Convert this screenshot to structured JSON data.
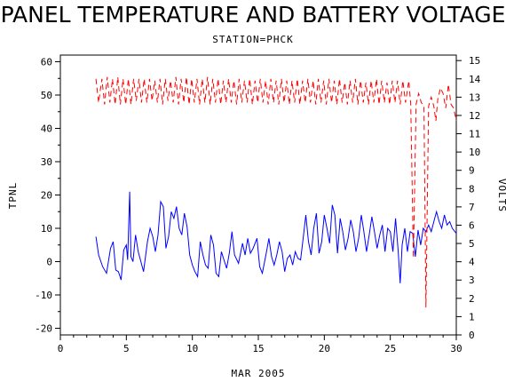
{
  "chart_data": {
    "type": "line",
    "title": "PANEL TEMPERATURE AND BATTERY VOLTAGE",
    "subtitle": "STATION=PHCK",
    "xlabel": "MAR 2005",
    "ylabel_left": "TPNL",
    "ylabel_right": "VOLTS",
    "xlim": [
      0,
      30
    ],
    "ylim_left": [
      -22,
      62
    ],
    "ylim_right": [
      0,
      15.3
    ],
    "x_ticks": [
      0,
      5,
      10,
      15,
      20,
      25,
      30
    ],
    "y_left_ticks": [
      -20,
      -10,
      0,
      10,
      20,
      30,
      40,
      50,
      60
    ],
    "y_right_ticks": [
      0,
      1,
      2,
      3,
      4,
      5,
      6,
      7,
      8,
      9,
      10,
      11,
      12,
      13,
      14,
      15
    ],
    "grid": false,
    "series": [
      {
        "axis": "left",
        "color": "#0000ff",
        "style": "solid",
        "points": [
          [
            2.7,
            7.5
          ],
          [
            2.9,
            2.0
          ],
          [
            3.2,
            -1.5
          ],
          [
            3.5,
            -3.5
          ],
          [
            3.8,
            4.0
          ],
          [
            4.0,
            6.0
          ],
          [
            4.2,
            -2.5
          ],
          [
            4.4,
            -3.0
          ],
          [
            4.6,
            -5.5
          ],
          [
            4.8,
            3.5
          ],
          [
            5.0,
            5.0
          ],
          [
            5.1,
            0.5
          ],
          [
            5.25,
            21.0
          ],
          [
            5.35,
            1.5
          ],
          [
            5.5,
            0.0
          ],
          [
            5.7,
            8.0
          ],
          [
            5.9,
            3.0
          ],
          [
            6.1,
            0.0
          ],
          [
            6.3,
            -3.0
          ],
          [
            6.6,
            6.0
          ],
          [
            6.8,
            10.0
          ],
          [
            7.0,
            7.5
          ],
          [
            7.2,
            3.0
          ],
          [
            7.4,
            8.0
          ],
          [
            7.6,
            18.0
          ],
          [
            7.8,
            16.5
          ],
          [
            8.0,
            4.0
          ],
          [
            8.2,
            7.5
          ],
          [
            8.4,
            15.0
          ],
          [
            8.6,
            13.0
          ],
          [
            8.8,
            16.5
          ],
          [
            9.0,
            10.0
          ],
          [
            9.2,
            8.0
          ],
          [
            9.4,
            14.5
          ],
          [
            9.6,
            10.5
          ],
          [
            9.8,
            2.0
          ],
          [
            10.0,
            -1.0
          ],
          [
            10.2,
            -3.0
          ],
          [
            10.4,
            -4.5
          ],
          [
            10.6,
            6.0
          ],
          [
            10.8,
            2.0
          ],
          [
            11.0,
            -1.0
          ],
          [
            11.2,
            -2.0
          ],
          [
            11.4,
            8.0
          ],
          [
            11.6,
            5.0
          ],
          [
            11.8,
            -3.5
          ],
          [
            12.0,
            -4.5
          ],
          [
            12.2,
            3.0
          ],
          [
            12.4,
            0.5
          ],
          [
            12.6,
            -2.0
          ],
          [
            12.8,
            2.5
          ],
          [
            13.0,
            9.0
          ],
          [
            13.2,
            2.0
          ],
          [
            13.5,
            -0.5
          ],
          [
            13.8,
            5.5
          ],
          [
            14.0,
            2.0
          ],
          [
            14.2,
            7.0
          ],
          [
            14.4,
            2.5
          ],
          [
            14.6,
            4.0
          ],
          [
            14.9,
            7.0
          ],
          [
            15.1,
            -1.5
          ],
          [
            15.3,
            -3.5
          ],
          [
            15.6,
            2.5
          ],
          [
            15.8,
            7.0
          ],
          [
            16.0,
            1.5
          ],
          [
            16.2,
            -1.0
          ],
          [
            16.4,
            2.0
          ],
          [
            16.6,
            6.0
          ],
          [
            16.8,
            3.0
          ],
          [
            17.0,
            -3.0
          ],
          [
            17.2,
            1.0
          ],
          [
            17.4,
            2.0
          ],
          [
            17.6,
            -1.0
          ],
          [
            17.8,
            3.0
          ],
          [
            18.0,
            1.0
          ],
          [
            18.2,
            0.5
          ],
          [
            18.4,
            7.0
          ],
          [
            18.6,
            14.0
          ],
          [
            18.8,
            6.0
          ],
          [
            19.0,
            2.0
          ],
          [
            19.2,
            10.0
          ],
          [
            19.4,
            14.5
          ],
          [
            19.6,
            2.5
          ],
          [
            19.8,
            6.0
          ],
          [
            20.0,
            14.0
          ],
          [
            20.2,
            10.0
          ],
          [
            20.4,
            5.5
          ],
          [
            20.6,
            17.0
          ],
          [
            20.8,
            14.0
          ],
          [
            21.0,
            2.5
          ],
          [
            21.2,
            13.0
          ],
          [
            21.4,
            9.0
          ],
          [
            21.6,
            3.5
          ],
          [
            21.8,
            7.0
          ],
          [
            22.0,
            12.5
          ],
          [
            22.2,
            9.0
          ],
          [
            22.4,
            3.0
          ],
          [
            22.6,
            7.0
          ],
          [
            22.8,
            14.0
          ],
          [
            23.0,
            9.0
          ],
          [
            23.2,
            3.0
          ],
          [
            23.4,
            8.0
          ],
          [
            23.6,
            13.5
          ],
          [
            23.8,
            9.0
          ],
          [
            24.0,
            4.0
          ],
          [
            24.2,
            8.0
          ],
          [
            24.4,
            11.0
          ],
          [
            24.6,
            3.0
          ],
          [
            24.8,
            10.0
          ],
          [
            25.0,
            9.0
          ],
          [
            25.2,
            3.0
          ],
          [
            25.4,
            13.0
          ],
          [
            25.6,
            3.0
          ],
          [
            25.75,
            -6.5
          ],
          [
            25.9,
            5.0
          ],
          [
            26.1,
            10.0
          ],
          [
            26.3,
            3.0
          ],
          [
            26.5,
            9.0
          ],
          [
            26.7,
            8.5
          ],
          [
            26.9,
            1.5
          ],
          [
            27.1,
            9.5
          ],
          [
            27.3,
            5.0
          ],
          [
            27.5,
            10.0
          ],
          [
            27.7,
            9.0
          ],
          [
            27.9,
            11.0
          ],
          [
            28.1,
            9.0
          ],
          [
            28.3,
            12.0
          ],
          [
            28.5,
            15.0
          ],
          [
            28.7,
            12.0
          ],
          [
            28.9,
            10.0
          ],
          [
            29.1,
            14.0
          ],
          [
            29.3,
            11.0
          ],
          [
            29.5,
            12.0
          ],
          [
            29.7,
            10.0
          ],
          [
            29.9,
            9.0
          ],
          [
            30.0,
            8.5
          ]
        ]
      },
      {
        "axis": "right",
        "color": "#ff0000",
        "style": "dashed",
        "points": [
          [
            2.7,
            14.0
          ],
          [
            2.9,
            12.7
          ],
          [
            3.15,
            14.0
          ],
          [
            3.35,
            12.6
          ],
          [
            3.55,
            14.1
          ],
          [
            3.75,
            12.7
          ],
          [
            3.95,
            14.0
          ],
          [
            4.15,
            12.6
          ],
          [
            4.35,
            14.1
          ],
          [
            4.55,
            12.6
          ],
          [
            4.75,
            14.0
          ],
          [
            4.95,
            12.6
          ],
          [
            5.15,
            14.0
          ],
          [
            5.35,
            12.6
          ],
          [
            5.55,
            14.0
          ],
          [
            5.75,
            12.8
          ],
          [
            5.95,
            14.0
          ],
          [
            6.15,
            12.7
          ],
          [
            6.35,
            14.0
          ],
          [
            6.55,
            12.7
          ],
          [
            6.75,
            14.0
          ],
          [
            6.95,
            12.8
          ],
          [
            7.15,
            13.9
          ],
          [
            7.35,
            12.7
          ],
          [
            7.55,
            14.0
          ],
          [
            7.75,
            12.6
          ],
          [
            7.95,
            14.0
          ],
          [
            8.15,
            12.8
          ],
          [
            8.35,
            13.9
          ],
          [
            8.55,
            12.7
          ],
          [
            8.75,
            14.1
          ],
          [
            8.95,
            12.6
          ],
          [
            9.15,
            14.0
          ],
          [
            9.35,
            12.7
          ],
          [
            9.55,
            14.1
          ],
          [
            9.75,
            12.6
          ],
          [
            9.95,
            14.0
          ],
          [
            10.15,
            12.7
          ],
          [
            10.35,
            14.0
          ],
          [
            10.55,
            12.6
          ],
          [
            10.75,
            14.0
          ],
          [
            10.95,
            12.7
          ],
          [
            11.15,
            14.1
          ],
          [
            11.35,
            12.6
          ],
          [
            11.55,
            14.0
          ],
          [
            11.75,
            12.7
          ],
          [
            11.95,
            14.0
          ],
          [
            12.15,
            12.6
          ],
          [
            12.35,
            13.9
          ],
          [
            12.55,
            12.7
          ],
          [
            12.75,
            14.0
          ],
          [
            12.95,
            12.7
          ],
          [
            13.15,
            13.9
          ],
          [
            13.35,
            12.6
          ],
          [
            13.55,
            14.0
          ],
          [
            13.75,
            12.7
          ],
          [
            13.95,
            13.9
          ],
          [
            14.15,
            12.7
          ],
          [
            14.35,
            14.0
          ],
          [
            14.55,
            12.6
          ],
          [
            14.75,
            13.9
          ],
          [
            14.95,
            12.7
          ],
          [
            15.15,
            14.0
          ],
          [
            15.35,
            12.7
          ],
          [
            15.55,
            13.9
          ],
          [
            15.75,
            12.6
          ],
          [
            15.95,
            14.0
          ],
          [
            16.15,
            12.7
          ],
          [
            16.35,
            13.9
          ],
          [
            16.55,
            12.6
          ],
          [
            16.75,
            14.0
          ],
          [
            16.95,
            12.7
          ],
          [
            17.15,
            13.9
          ],
          [
            17.35,
            12.6
          ],
          [
            17.55,
            13.9
          ],
          [
            17.75,
            12.7
          ],
          [
            17.95,
            14.0
          ],
          [
            18.15,
            12.6
          ],
          [
            18.35,
            13.9
          ],
          [
            18.55,
            12.7
          ],
          [
            18.75,
            14.0
          ],
          [
            18.95,
            12.7
          ],
          [
            19.15,
            13.9
          ],
          [
            19.35,
            12.6
          ],
          [
            19.55,
            14.0
          ],
          [
            19.75,
            12.7
          ],
          [
            19.95,
            13.9
          ],
          [
            20.15,
            12.6
          ],
          [
            20.35,
            14.0
          ],
          [
            20.55,
            12.7
          ],
          [
            20.75,
            13.9
          ],
          [
            20.95,
            12.6
          ],
          [
            21.15,
            14.0
          ],
          [
            21.35,
            12.7
          ],
          [
            21.55,
            13.8
          ],
          [
            21.75,
            12.6
          ],
          [
            21.95,
            13.9
          ],
          [
            22.15,
            12.7
          ],
          [
            22.35,
            14.0
          ],
          [
            22.55,
            12.6
          ],
          [
            22.75,
            13.9
          ],
          [
            22.95,
            12.7
          ],
          [
            23.15,
            13.8
          ],
          [
            23.35,
            12.6
          ],
          [
            23.55,
            13.9
          ],
          [
            23.75,
            12.7
          ],
          [
            23.95,
            14.0
          ],
          [
            24.15,
            12.6
          ],
          [
            24.35,
            13.9
          ],
          [
            24.55,
            12.7
          ],
          [
            24.75,
            13.8
          ],
          [
            24.95,
            12.6
          ],
          [
            25.15,
            13.9
          ],
          [
            25.35,
            12.7
          ],
          [
            25.55,
            13.9
          ],
          [
            25.75,
            12.6
          ],
          [
            25.95,
            13.9
          ],
          [
            26.15,
            12.7
          ],
          [
            26.4,
            13.9
          ],
          [
            26.55,
            12.6
          ],
          [
            26.75,
            4.2
          ],
          [
            26.95,
            12.6
          ],
          [
            27.15,
            13.2
          ],
          [
            27.35,
            12.7
          ],
          [
            27.55,
            12.5
          ],
          [
            27.7,
            1.5
          ],
          [
            27.9,
            12.5
          ],
          [
            28.1,
            13.0
          ],
          [
            28.3,
            12.5
          ],
          [
            28.45,
            11.7
          ],
          [
            28.6,
            12.9
          ],
          [
            28.8,
            13.5
          ],
          [
            29.0,
            13.2
          ],
          [
            29.2,
            12.4
          ],
          [
            29.4,
            13.7
          ],
          [
            29.6,
            12.6
          ],
          [
            29.8,
            12.4
          ],
          [
            30.0,
            11.7
          ]
        ]
      }
    ]
  }
}
